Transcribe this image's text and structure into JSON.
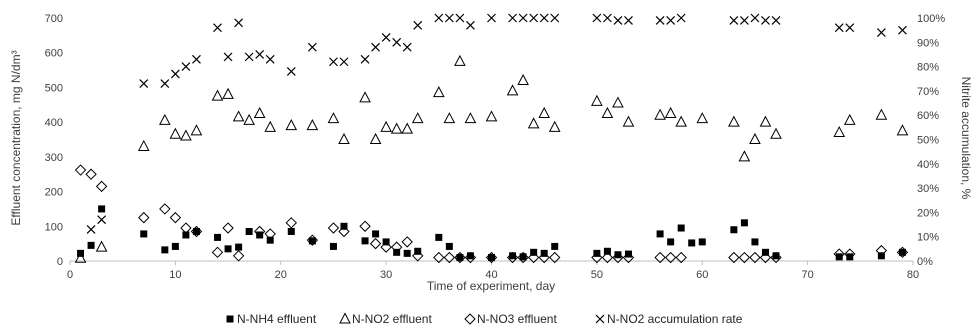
{
  "chart_data": {
    "type": "scatter",
    "title": "",
    "xlabel": "Time of experiment, day",
    "ylabel": "Effluent concentration, mg N/dm³",
    "y2label": "Nitrite accumulation, %",
    "xlim": [
      0,
      80
    ],
    "ylim": [
      0,
      700
    ],
    "y2lim": [
      0,
      100
    ],
    "x_ticks": [
      0,
      10,
      20,
      30,
      40,
      50,
      60,
      70,
      80
    ],
    "y_ticks": [
      0,
      100,
      200,
      300,
      400,
      500,
      600,
      700
    ],
    "y2_ticks": [
      0,
      10,
      20,
      30,
      40,
      50,
      60,
      70,
      80,
      90,
      100
    ],
    "y2_tick_labels": [
      "0%",
      "10%",
      "20%",
      "30%",
      "40%",
      "50%",
      "60%",
      "70%",
      "80%",
      "90%",
      "100%"
    ],
    "grid": false,
    "legend_position": "bottom",
    "series": [
      {
        "name": "N-NH4 effluent",
        "marker": "filled-square",
        "axis": "left",
        "color": "#000000",
        "points": [
          [
            1,
            22
          ],
          [
            2,
            45
          ],
          [
            3,
            150
          ],
          [
            7,
            78
          ],
          [
            9,
            32
          ],
          [
            10,
            42
          ],
          [
            11,
            75
          ],
          [
            12,
            85
          ],
          [
            14,
            68
          ],
          [
            15,
            35
          ],
          [
            16,
            40
          ],
          [
            17,
            85
          ],
          [
            18,
            75
          ],
          [
            19,
            60
          ],
          [
            21,
            85
          ],
          [
            23,
            58
          ],
          [
            25,
            42
          ],
          [
            26,
            100
          ],
          [
            28,
            58
          ],
          [
            29,
            78
          ],
          [
            30,
            55
          ],
          [
            31,
            25
          ],
          [
            32,
            22
          ],
          [
            33,
            28
          ],
          [
            35,
            68
          ],
          [
            36,
            42
          ],
          [
            37,
            10
          ],
          [
            38,
            15
          ],
          [
            40,
            10
          ],
          [
            42,
            15
          ],
          [
            43,
            12
          ],
          [
            44,
            25
          ],
          [
            45,
            22
          ],
          [
            46,
            42
          ],
          [
            50,
            22
          ],
          [
            51,
            28
          ],
          [
            52,
            18
          ],
          [
            53,
            20
          ],
          [
            56,
            78
          ],
          [
            57,
            55
          ],
          [
            58,
            95
          ],
          [
            59,
            52
          ],
          [
            60,
            55
          ],
          [
            63,
            90
          ],
          [
            64,
            110
          ],
          [
            65,
            55
          ],
          [
            66,
            25
          ],
          [
            67,
            15
          ],
          [
            73,
            12
          ],
          [
            74,
            12
          ],
          [
            77,
            15
          ],
          [
            79,
            25
          ]
        ]
      },
      {
        "name": "N-NO2 effluent",
        "marker": "open-triangle",
        "axis": "left",
        "color": "#000000",
        "points": [
          [
            1,
            8
          ],
          [
            3,
            40
          ],
          [
            7,
            330
          ],
          [
            9,
            405
          ],
          [
            10,
            365
          ],
          [
            11,
            360
          ],
          [
            12,
            375
          ],
          [
            14,
            475
          ],
          [
            15,
            480
          ],
          [
            16,
            415
          ],
          [
            17,
            405
          ],
          [
            18,
            425
          ],
          [
            19,
            385
          ],
          [
            21,
            390
          ],
          [
            23,
            390
          ],
          [
            25,
            410
          ],
          [
            26,
            350
          ],
          [
            28,
            470
          ],
          [
            29,
            350
          ],
          [
            30,
            385
          ],
          [
            31,
            380
          ],
          [
            32,
            380
          ],
          [
            33,
            410
          ],
          [
            35,
            485
          ],
          [
            36,
            410
          ],
          [
            37,
            575
          ],
          [
            38,
            410
          ],
          [
            40,
            415
          ],
          [
            42,
            490
          ],
          [
            43,
            520
          ],
          [
            44,
            395
          ],
          [
            45,
            425
          ],
          [
            46,
            385
          ],
          [
            50,
            460
          ],
          [
            51,
            425
          ],
          [
            52,
            455
          ],
          [
            53,
            400
          ],
          [
            56,
            420
          ],
          [
            57,
            425
          ],
          [
            58,
            400
          ],
          [
            60,
            410
          ],
          [
            63,
            400
          ],
          [
            64,
            300
          ],
          [
            65,
            350
          ],
          [
            66,
            400
          ],
          [
            67,
            365
          ],
          [
            73,
            370
          ],
          [
            74,
            405
          ],
          [
            77,
            420
          ],
          [
            79,
            375
          ]
        ]
      },
      {
        "name": "N-NO3 effluent",
        "marker": "open-diamond",
        "axis": "left",
        "color": "#000000",
        "points": [
          [
            1,
            262
          ],
          [
            2,
            250
          ],
          [
            3,
            215
          ],
          [
            7,
            125
          ],
          [
            9,
            150
          ],
          [
            10,
            125
          ],
          [
            11,
            95
          ],
          [
            12,
            85
          ],
          [
            14,
            25
          ],
          [
            15,
            95
          ],
          [
            16,
            15
          ],
          [
            18,
            85
          ],
          [
            19,
            78
          ],
          [
            21,
            110
          ],
          [
            23,
            60
          ],
          [
            25,
            95
          ],
          [
            26,
            85
          ],
          [
            28,
            100
          ],
          [
            29,
            50
          ],
          [
            30,
            40
          ],
          [
            31,
            40
          ],
          [
            32,
            55
          ],
          [
            33,
            15
          ],
          [
            35,
            10
          ],
          [
            36,
            10
          ],
          [
            37,
            10
          ],
          [
            38,
            10
          ],
          [
            40,
            10
          ],
          [
            42,
            10
          ],
          [
            43,
            10
          ],
          [
            44,
            10
          ],
          [
            45,
            10
          ],
          [
            46,
            10
          ],
          [
            50,
            10
          ],
          [
            51,
            10
          ],
          [
            52,
            10
          ],
          [
            53,
            10
          ],
          [
            56,
            10
          ],
          [
            57,
            10
          ],
          [
            58,
            10
          ],
          [
            63,
            10
          ],
          [
            64,
            10
          ],
          [
            65,
            10
          ],
          [
            66,
            10
          ],
          [
            67,
            10
          ],
          [
            73,
            20
          ],
          [
            74,
            20
          ],
          [
            77,
            30
          ],
          [
            79,
            25
          ]
        ]
      },
      {
        "name": "N-NO2 accumulation rate",
        "marker": "x-cross",
        "axis": "right",
        "color": "#000000",
        "points": [
          [
            2,
            13
          ],
          [
            3,
            17
          ],
          [
            7,
            73
          ],
          [
            9,
            73
          ],
          [
            10,
            77
          ],
          [
            11,
            80
          ],
          [
            12,
            83
          ],
          [
            14,
            96
          ],
          [
            15,
            84
          ],
          [
            16,
            98
          ],
          [
            17,
            84
          ],
          [
            18,
            85
          ],
          [
            19,
            83
          ],
          [
            21,
            78
          ],
          [
            23,
            88
          ],
          [
            25,
            82
          ],
          [
            26,
            82
          ],
          [
            28,
            83
          ],
          [
            29,
            88
          ],
          [
            30,
            92
          ],
          [
            31,
            90
          ],
          [
            32,
            88
          ],
          [
            33,
            97
          ],
          [
            35,
            100
          ],
          [
            36,
            100
          ],
          [
            37,
            100
          ],
          [
            38,
            97
          ],
          [
            40,
            100
          ],
          [
            42,
            100
          ],
          [
            43,
            100
          ],
          [
            44,
            100
          ],
          [
            45,
            100
          ],
          [
            46,
            100
          ],
          [
            50,
            100
          ],
          [
            51,
            100
          ],
          [
            52,
            99
          ],
          [
            53,
            99
          ],
          [
            56,
            99
          ],
          [
            57,
            99
          ],
          [
            58,
            100
          ],
          [
            63,
            99
          ],
          [
            64,
            99
          ],
          [
            65,
            100
          ],
          [
            66,
            99
          ],
          [
            67,
            99
          ],
          [
            73,
            96
          ],
          [
            74,
            96
          ],
          [
            77,
            94
          ],
          [
            79,
            95
          ]
        ]
      }
    ]
  }
}
